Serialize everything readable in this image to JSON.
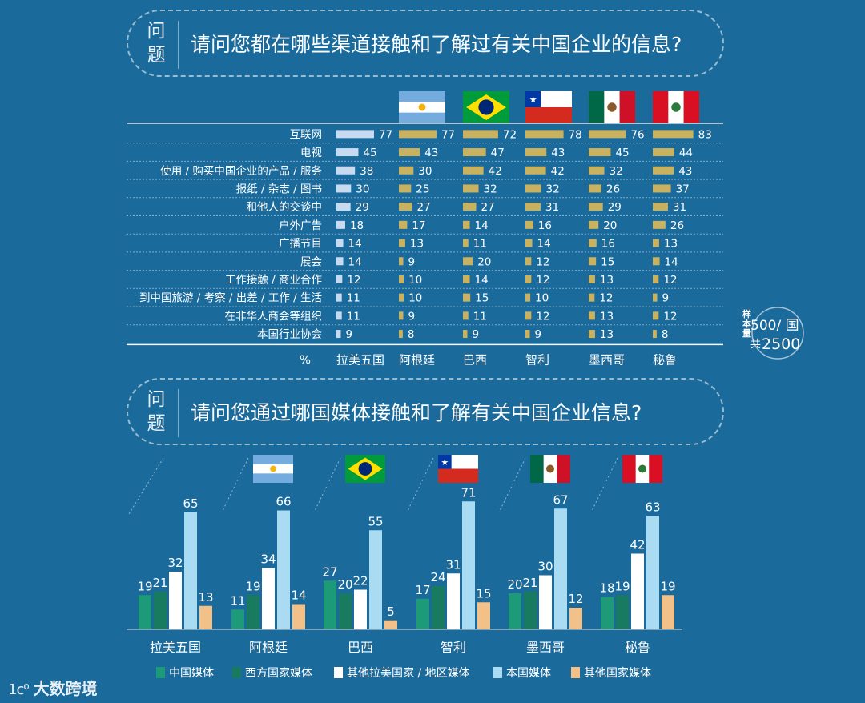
{
  "section1": {
    "question_label": "问题",
    "question_text": "请问您都在哪些渠道接触和了解过有关中国企业的信息?"
  },
  "section2": {
    "question_label": "问题",
    "question_text": "请问您通过哪国媒体接触和了解有关中国企业信息?"
  },
  "colors": {
    "background": "#1a6a9c",
    "latam_bar": "#c7daf0",
    "country_bar": "#c9b25f",
    "china_media": "#1d9a78",
    "western_media": "#187a5e",
    "other_latam_media": "#ffffff",
    "local_media": "#a9dcf3",
    "other_country_media": "#f2c089"
  },
  "flags": [
    {
      "country": "阿根廷",
      "icon": "argentina-flag-icon"
    },
    {
      "country": "巴西",
      "icon": "brazil-flag-icon"
    },
    {
      "country": "智利",
      "icon": "chile-flag-icon"
    },
    {
      "country": "墨西哥",
      "icon": "mexico-flag-icon"
    },
    {
      "country": "秘鲁",
      "icon": "peru-flag-icon"
    }
  ],
  "sample_note": {
    "label": "样本量",
    "per_country": "500/ 国",
    "total_prefix": "共",
    "total": "2500"
  },
  "brand": {
    "logo": "1ᴄ⁰",
    "name": "大数跨境"
  },
  "chart_data": [
    {
      "type": "bar",
      "title": "请问您都在哪些渠道接触和了解过有关中国企业的信息?",
      "unit_label": "%",
      "orientation": "horizontal",
      "categories": [
        "互联网",
        "电视",
        "使用 / 购买中国企业的产品 / 服务",
        "报纸 / 杂志 / 图书",
        "和他人的交谈中",
        "户外广告",
        "广播节目",
        "展会",
        "工作接触 / 商业合作",
        "到中国旅游 / 考察 / 出差 / 工作 / 生活",
        "在非华人商会等组织",
        "本国行业协会"
      ],
      "series": [
        {
          "name": "拉美五国",
          "values": [
            77,
            45,
            38,
            30,
            29,
            18,
            14,
            14,
            12,
            11,
            11,
            9
          ]
        },
        {
          "name": "阿根廷",
          "values": [
            77,
            43,
            30,
            25,
            27,
            17,
            13,
            9,
            10,
            10,
            9,
            8
          ]
        },
        {
          "name": "巴西",
          "values": [
            72,
            47,
            42,
            32,
            27,
            14,
            11,
            20,
            14,
            15,
            11,
            9
          ]
        },
        {
          "name": "智利",
          "values": [
            78,
            43,
            42,
            32,
            31,
            16,
            14,
            12,
            12,
            10,
            12,
            9
          ]
        },
        {
          "name": "墨西哥",
          "values": [
            76,
            45,
            32,
            26,
            29,
            20,
            16,
            15,
            13,
            12,
            13,
            13
          ]
        },
        {
          "name": "秘鲁",
          "values": [
            83,
            44,
            43,
            37,
            31,
            26,
            13,
            14,
            12,
            9,
            12,
            8
          ]
        }
      ]
    },
    {
      "type": "bar",
      "title": "请问您通过哪国媒体接触和了解有关中国企业信息?",
      "categories": [
        "拉美五国",
        "阿根廷",
        "巴西",
        "智利",
        "墨西哥",
        "秘鲁"
      ],
      "series": [
        {
          "name": "中国媒体",
          "values": [
            19,
            11,
            27,
            17,
            20,
            18
          ]
        },
        {
          "name": "西方国家媒体",
          "values": [
            21,
            19,
            20,
            24,
            21,
            19
          ]
        },
        {
          "name": "其他拉美国家 / 地区媒体",
          "values": [
            32,
            34,
            22,
            31,
            30,
            42
          ]
        },
        {
          "name": "本国媒体",
          "values": [
            65,
            66,
            55,
            71,
            67,
            63
          ]
        },
        {
          "name": "其他国家媒体",
          "values": [
            13,
            14,
            5,
            15,
            12,
            19
          ]
        }
      ]
    }
  ]
}
